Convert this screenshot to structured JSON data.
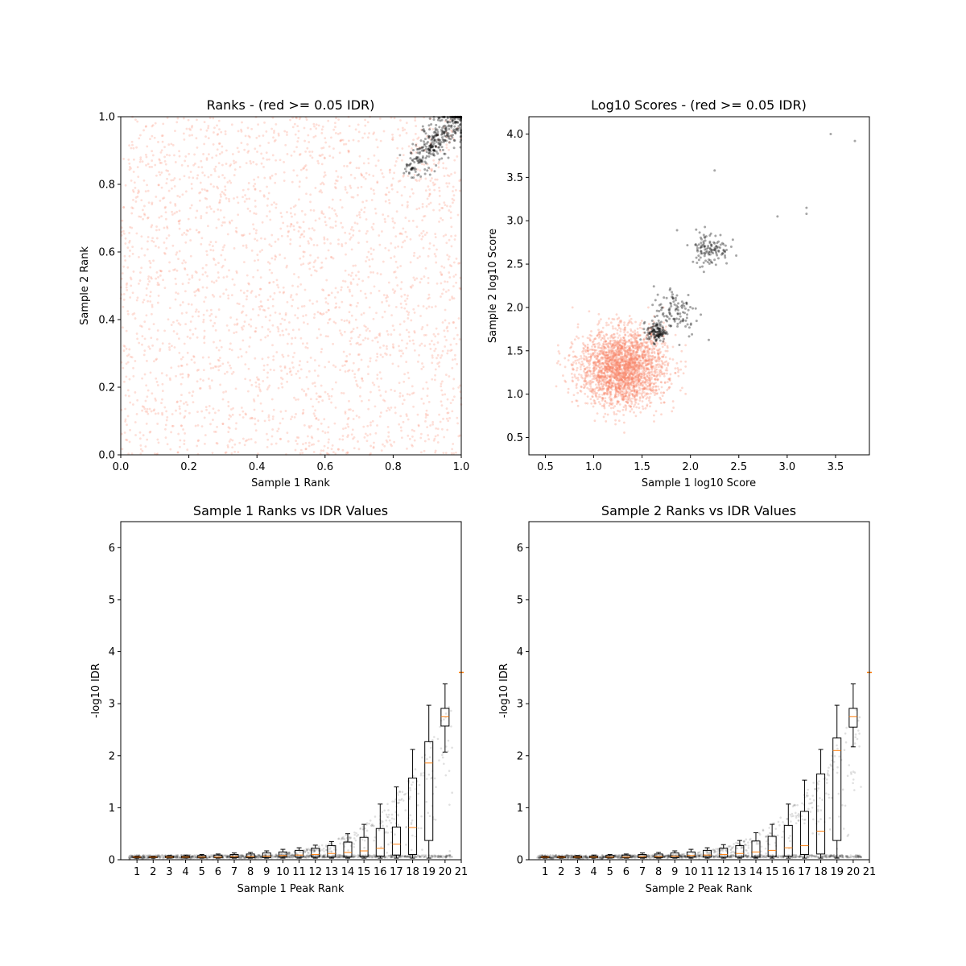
{
  "chart_data": [
    {
      "type": "scatter",
      "title": "Ranks - (red >= 0.05 IDR)",
      "xlabel": "Sample 1 Rank",
      "ylabel": "Sample 2 Rank",
      "xlim": [
        0.0,
        1.0
      ],
      "ylim": [
        0.0,
        1.0
      ],
      "xticks": [
        "0.0",
        "0.2",
        "0.4",
        "0.6",
        "0.8",
        "1.0"
      ],
      "yticks": [
        "0.0",
        "0.2",
        "0.4",
        "0.6",
        "0.8",
        "1.0"
      ],
      "series": [
        {
          "color": "#fa8064",
          "description_points": "uniform cloud over [0,1]x[0,1]",
          "count": 2500
        },
        {
          "color": "#000000",
          "points_region": {
            "x": [
              0.82,
              1.0
            ],
            "y": [
              0.82,
              1.0
            ]
          },
          "count": 350
        }
      ]
    },
    {
      "type": "scatter",
      "title": "Log10 Scores - (red >= 0.05 IDR)",
      "xlabel": "Sample 1 log10 Score",
      "ylabel": "Sample 2 log10 Score",
      "xlim": [
        0.33,
        3.85
      ],
      "ylim": [
        0.3,
        4.2
      ],
      "xticks": [
        "0.5",
        "1.0",
        "1.5",
        "2.0",
        "2.5",
        "3.0",
        "3.5"
      ],
      "yticks": [
        "0.5",
        "1.0",
        "1.5",
        "2.0",
        "2.5",
        "3.0",
        "3.5",
        "4.0"
      ],
      "series": [
        {
          "color": "#fa8064",
          "center": [
            1.3,
            1.3
          ],
          "count": 2500
        },
        {
          "color": "#000000",
          "clusters": [
            [
              1.65,
              1.7
            ],
            [
              1.9,
              1.9
            ],
            [
              2.2,
              2.7
            ]
          ],
          "count": 350
        }
      ]
    },
    {
      "type": "box",
      "title": "Sample 1 Ranks vs IDR Values",
      "xlabel": "Sample 1 Peak Rank",
      "ylabel": "-log10 IDR",
      "ylim": [
        0,
        6.5
      ],
      "yticks": [
        "0",
        "1",
        "2",
        "3",
        "4",
        "5",
        "6"
      ],
      "categories": [
        "1",
        "2",
        "3",
        "4",
        "5",
        "6",
        "7",
        "8",
        "9",
        "10",
        "11",
        "12",
        "13",
        "14",
        "15",
        "16",
        "17",
        "18",
        "19",
        "20",
        "21"
      ],
      "boxes": [
        {
          "q1": 0.04,
          "med": 0.05,
          "q3": 0.06,
          "wlo": 0.03,
          "whi": 0.07
        },
        {
          "q1": 0.04,
          "med": 0.05,
          "q3": 0.06,
          "wlo": 0.03,
          "whi": 0.07
        },
        {
          "q1": 0.04,
          "med": 0.05,
          "q3": 0.07,
          "wlo": 0.03,
          "whi": 0.08
        },
        {
          "q1": 0.04,
          "med": 0.05,
          "q3": 0.07,
          "wlo": 0.03,
          "whi": 0.09
        },
        {
          "q1": 0.04,
          "med": 0.05,
          "q3": 0.08,
          "wlo": 0.03,
          "whi": 0.1
        },
        {
          "q1": 0.04,
          "med": 0.05,
          "q3": 0.09,
          "wlo": 0.03,
          "whi": 0.11
        },
        {
          "q1": 0.04,
          "med": 0.06,
          "q3": 0.1,
          "wlo": 0.03,
          "whi": 0.13
        },
        {
          "q1": 0.04,
          "med": 0.06,
          "q3": 0.11,
          "wlo": 0.03,
          "whi": 0.14
        },
        {
          "q1": 0.04,
          "med": 0.07,
          "q3": 0.13,
          "wlo": 0.03,
          "whi": 0.17
        },
        {
          "q1": 0.05,
          "med": 0.08,
          "q3": 0.15,
          "wlo": 0.03,
          "whi": 0.2
        },
        {
          "q1": 0.05,
          "med": 0.09,
          "q3": 0.18,
          "wlo": 0.03,
          "whi": 0.23
        },
        {
          "q1": 0.05,
          "med": 0.1,
          "q3": 0.22,
          "wlo": 0.03,
          "whi": 0.28
        },
        {
          "q1": 0.05,
          "med": 0.12,
          "q3": 0.27,
          "wlo": 0.03,
          "whi": 0.35
        },
        {
          "q1": 0.05,
          "med": 0.14,
          "q3": 0.34,
          "wlo": 0.03,
          "whi": 0.5
        },
        {
          "q1": 0.06,
          "med": 0.17,
          "q3": 0.43,
          "wlo": 0.03,
          "whi": 0.68
        },
        {
          "q1": 0.07,
          "med": 0.22,
          "q3": 0.6,
          "wlo": 0.03,
          "whi": 1.07
        },
        {
          "q1": 0.09,
          "med": 0.3,
          "q3": 0.63,
          "wlo": 0.03,
          "whi": 1.4
        },
        {
          "q1": 0.1,
          "med": 0.62,
          "q3": 1.57,
          "wlo": 0.03,
          "whi": 2.12
        },
        {
          "q1": 0.37,
          "med": 1.86,
          "q3": 2.27,
          "wlo": 0.03,
          "whi": 2.97
        },
        {
          "q1": 2.57,
          "med": 2.75,
          "q3": 2.91,
          "wlo": 2.07,
          "whi": 3.38
        },
        {
          "q1": 3.6,
          "med": 3.6,
          "q3": 3.6,
          "wlo": 3.6,
          "whi": 3.6
        }
      ]
    },
    {
      "type": "box",
      "title": "Sample 2 Ranks vs IDR Values",
      "xlabel": "Sample 2 Peak Rank",
      "ylabel": "-log10 IDR",
      "ylim": [
        0,
        6.5
      ],
      "yticks": [
        "0",
        "1",
        "2",
        "3",
        "4",
        "5",
        "6"
      ],
      "categories": [
        "1",
        "2",
        "3",
        "4",
        "5",
        "6",
        "7",
        "8",
        "9",
        "10",
        "11",
        "12",
        "13",
        "14",
        "15",
        "16",
        "17",
        "18",
        "19",
        "20",
        "21"
      ],
      "boxes": [
        {
          "q1": 0.04,
          "med": 0.05,
          "q3": 0.06,
          "wlo": 0.03,
          "whi": 0.07
        },
        {
          "q1": 0.04,
          "med": 0.05,
          "q3": 0.06,
          "wlo": 0.03,
          "whi": 0.07
        },
        {
          "q1": 0.04,
          "med": 0.05,
          "q3": 0.07,
          "wlo": 0.03,
          "whi": 0.08
        },
        {
          "q1": 0.04,
          "med": 0.05,
          "q3": 0.07,
          "wlo": 0.03,
          "whi": 0.09
        },
        {
          "q1": 0.04,
          "med": 0.05,
          "q3": 0.08,
          "wlo": 0.03,
          "whi": 0.1
        },
        {
          "q1": 0.04,
          "med": 0.05,
          "q3": 0.09,
          "wlo": 0.03,
          "whi": 0.11
        },
        {
          "q1": 0.04,
          "med": 0.06,
          "q3": 0.1,
          "wlo": 0.03,
          "whi": 0.13
        },
        {
          "q1": 0.04,
          "med": 0.06,
          "q3": 0.11,
          "wlo": 0.03,
          "whi": 0.14
        },
        {
          "q1": 0.04,
          "med": 0.07,
          "q3": 0.13,
          "wlo": 0.03,
          "whi": 0.17
        },
        {
          "q1": 0.05,
          "med": 0.08,
          "q3": 0.15,
          "wlo": 0.03,
          "whi": 0.2
        },
        {
          "q1": 0.05,
          "med": 0.09,
          "q3": 0.18,
          "wlo": 0.03,
          "whi": 0.23
        },
        {
          "q1": 0.05,
          "med": 0.1,
          "q3": 0.22,
          "wlo": 0.03,
          "whi": 0.29
        },
        {
          "q1": 0.05,
          "med": 0.12,
          "q3": 0.27,
          "wlo": 0.03,
          "whi": 0.37
        },
        {
          "q1": 0.05,
          "med": 0.15,
          "q3": 0.36,
          "wlo": 0.03,
          "whi": 0.52
        },
        {
          "q1": 0.06,
          "med": 0.18,
          "q3": 0.45,
          "wlo": 0.03,
          "whi": 0.68
        },
        {
          "q1": 0.07,
          "med": 0.23,
          "q3": 0.66,
          "wlo": 0.03,
          "whi": 1.07
        },
        {
          "q1": 0.1,
          "med": 0.27,
          "q3": 0.93,
          "wlo": 0.03,
          "whi": 1.53
        },
        {
          "q1": 0.11,
          "med": 0.55,
          "q3": 1.65,
          "wlo": 0.03,
          "whi": 2.12
        },
        {
          "q1": 0.37,
          "med": 2.1,
          "q3": 2.34,
          "wlo": 0.03,
          "whi": 2.97
        },
        {
          "q1": 2.55,
          "med": 2.75,
          "q3": 2.91,
          "wlo": 2.17,
          "whi": 3.38
        },
        {
          "q1": 3.6,
          "med": 3.6,
          "q3": 3.6,
          "wlo": 3.6,
          "whi": 3.6
        }
      ]
    }
  ]
}
